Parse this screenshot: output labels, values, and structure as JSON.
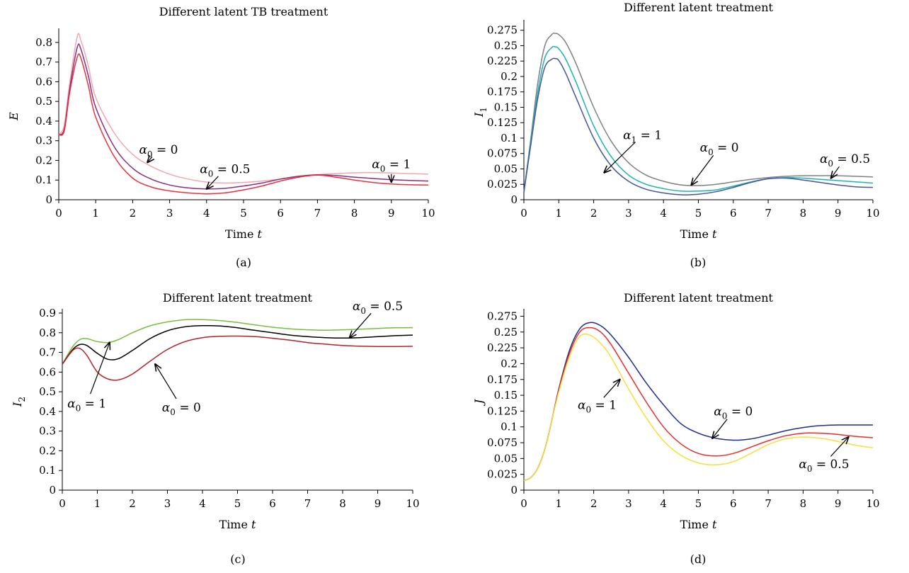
{
  "chart_data": [
    {
      "panel": "(a)",
      "type": "line",
      "title": "Different latent TB treatment",
      "xlabel_text": "Time",
      "xlabel_var": "t",
      "ylabel_var": "E",
      "ylabel_sub": "",
      "xlim": [
        0,
        10
      ],
      "ylim": [
        0,
        0.85
      ],
      "xticks": [
        0,
        1,
        2,
        3,
        4,
        5,
        6,
        7,
        8,
        9,
        10
      ],
      "yticks": [
        "0",
        "0.1",
        "0.2",
        "0.3",
        "0.4",
        "0.5",
        "0.6",
        "0.7",
        "0.8"
      ],
      "ytick_values": [
        0,
        0.1,
        0.2,
        0.3,
        0.4,
        0.5,
        0.6,
        0.7,
        0.8
      ],
      "series": [
        {
          "color": "#f4a7ae",
          "x": [
            0,
            0.15,
            0.3,
            0.5,
            0.6,
            0.8,
            1,
            1.5,
            2,
            2.5,
            3,
            3.5,
            4,
            4.5,
            5,
            5.5,
            6,
            6.5,
            7,
            7.5,
            8,
            8.5,
            9,
            9.5,
            10
          ],
          "y": [
            0.33,
            0.38,
            0.6,
            0.83,
            0.81,
            0.68,
            0.52,
            0.34,
            0.23,
            0.17,
            0.13,
            0.105,
            0.09,
            0.085,
            0.088,
            0.095,
            0.105,
            0.118,
            0.128,
            0.133,
            0.137,
            0.138,
            0.136,
            0.133,
            0.13
          ]
        },
        {
          "color": "#8b2d7d",
          "x": [
            0,
            0.15,
            0.3,
            0.5,
            0.6,
            0.8,
            1,
            1.5,
            2,
            2.5,
            3,
            3.5,
            4,
            4.5,
            5,
            5.5,
            6,
            6.5,
            7,
            7.5,
            8,
            8.5,
            9,
            9.5,
            10
          ],
          "y": [
            0.33,
            0.36,
            0.57,
            0.775,
            0.765,
            0.63,
            0.47,
            0.27,
            0.16,
            0.105,
            0.075,
            0.06,
            0.055,
            0.058,
            0.07,
            0.085,
            0.105,
            0.12,
            0.127,
            0.123,
            0.115,
            0.108,
            0.102,
            0.098,
            0.095
          ]
        },
        {
          "color": "#e8323c",
          "x": [
            0,
            0.15,
            0.3,
            0.5,
            0.6,
            0.8,
            1,
            1.5,
            2,
            2.5,
            3,
            3.5,
            4,
            4.5,
            5,
            5.5,
            6,
            6.5,
            7,
            7.5,
            8,
            8.5,
            9,
            9.5,
            10
          ],
          "y": [
            0.33,
            0.35,
            0.55,
            0.725,
            0.72,
            0.58,
            0.42,
            0.22,
            0.11,
            0.065,
            0.045,
            0.035,
            0.03,
            0.035,
            0.05,
            0.07,
            0.095,
            0.115,
            0.125,
            0.115,
            0.1,
            0.088,
            0.08,
            0.076,
            0.075
          ]
        }
      ],
      "annotations": [
        {
          "prefix": "α",
          "sub": "0",
          "rest": " = 0",
          "tx": 2.7,
          "ty": 0.235,
          "ax": 2.4,
          "ay": 0.19
        },
        {
          "prefix": "α",
          "sub": "0",
          "rest": " = 0.5",
          "tx": 4.5,
          "ty": 0.135,
          "ax": 4.0,
          "ay": 0.055
        },
        {
          "prefix": "α",
          "sub": "0",
          "rest": " = 1",
          "tx": 9.0,
          "ty": 0.16,
          "ax": 9.0,
          "ay": 0.09
        }
      ]
    },
    {
      "panel": "(b)",
      "type": "line",
      "title": "Different latent treatment",
      "xlabel_text": "Time",
      "xlabel_var": "t",
      "ylabel_var": "I",
      "ylabel_sub": "1",
      "xlim": [
        0,
        10
      ],
      "ylim": [
        0,
        0.285
      ],
      "xticks": [
        0,
        1,
        2,
        3,
        4,
        5,
        6,
        7,
        8,
        9,
        10
      ],
      "yticks": [
        "0",
        "0.025",
        "0.05",
        "0.075",
        "0.1",
        "0.125",
        "0.15",
        "0.175",
        "0.2",
        "0.225",
        "0.25",
        "0.275"
      ],
      "ytick_values": [
        0,
        0.025,
        0.05,
        0.075,
        0.1,
        0.125,
        0.15,
        0.175,
        0.2,
        0.225,
        0.25,
        0.275
      ],
      "series": [
        {
          "color": "#808080",
          "x": [
            0,
            0.2,
            0.4,
            0.6,
            0.8,
            0.9,
            1,
            1.2,
            1.5,
            2,
            2.5,
            3,
            3.5,
            4,
            4.5,
            5,
            5.5,
            6,
            6.5,
            7,
            7.5,
            8,
            8.5,
            9,
            9.5,
            10
          ],
          "y": [
            0.012,
            0.1,
            0.19,
            0.25,
            0.268,
            0.27,
            0.268,
            0.255,
            0.22,
            0.15,
            0.095,
            0.06,
            0.04,
            0.03,
            0.024,
            0.023,
            0.025,
            0.029,
            0.033,
            0.036,
            0.038,
            0.039,
            0.039,
            0.039,
            0.038,
            0.037
          ]
        },
        {
          "color": "#1ab5b0",
          "x": [
            0,
            0.2,
            0.4,
            0.6,
            0.8,
            0.9,
            1,
            1.2,
            1.5,
            2,
            2.5,
            3,
            3.5,
            4,
            4.5,
            5,
            5.5,
            6,
            6.5,
            7,
            7.5,
            8,
            8.5,
            9,
            9.5,
            10
          ],
          "y": [
            0.012,
            0.095,
            0.175,
            0.23,
            0.247,
            0.248,
            0.245,
            0.228,
            0.19,
            0.12,
            0.07,
            0.04,
            0.025,
            0.018,
            0.014,
            0.014,
            0.016,
            0.022,
            0.029,
            0.034,
            0.036,
            0.035,
            0.033,
            0.031,
            0.029,
            0.027
          ]
        },
        {
          "color": "#46549e",
          "x": [
            0,
            0.2,
            0.4,
            0.6,
            0.8,
            0.9,
            1,
            1.2,
            1.5,
            2,
            2.5,
            3,
            3.5,
            4,
            4.5,
            5,
            5.5,
            6,
            6.5,
            7,
            7.5,
            8,
            8.5,
            9,
            9.5,
            10
          ],
          "y": [
            0.012,
            0.09,
            0.165,
            0.215,
            0.228,
            0.229,
            0.226,
            0.205,
            0.165,
            0.1,
            0.055,
            0.03,
            0.017,
            0.011,
            0.008,
            0.009,
            0.013,
            0.02,
            0.028,
            0.034,
            0.035,
            0.032,
            0.028,
            0.024,
            0.021,
            0.02
          ]
        }
      ],
      "annotations": [
        {
          "prefix": "α",
          "sub": "1",
          "rest": " = 1",
          "tx": 3.4,
          "ty": 0.098,
          "ax": 2.3,
          "ay": 0.044
        },
        {
          "prefix": "α",
          "sub": "0",
          "rest": " = 0",
          "tx": 5.6,
          "ty": 0.078,
          "ax": 4.8,
          "ay": 0.024
        },
        {
          "prefix": "α",
          "sub": "0",
          "rest": " = 0.5",
          "tx": 9.2,
          "ty": 0.06,
          "ax": 8.8,
          "ay": 0.035
        }
      ]
    },
    {
      "panel": "(c)",
      "type": "line",
      "title": "Different latent treatment",
      "xlabel_text": "Time",
      "xlabel_var": "t",
      "ylabel_var": "I",
      "ylabel_sub": "2",
      "xlim": [
        0,
        10
      ],
      "ylim": [
        0,
        0.9
      ],
      "xticks": [
        0,
        1,
        2,
        3,
        4,
        5,
        6,
        7,
        8,
        9,
        10
      ],
      "yticks": [
        "0",
        "0.1",
        "0.2",
        "0.3",
        "0.4",
        "0.5",
        "0.6",
        "0.7",
        "0.8",
        "0.9"
      ],
      "ytick_values": [
        0,
        0.1,
        0.2,
        0.3,
        0.4,
        0.5,
        0.6,
        0.7,
        0.8,
        0.9
      ],
      "series": [
        {
          "color": "#79bd3f",
          "x": [
            0,
            0.3,
            0.5,
            0.7,
            1,
            1.3,
            1.6,
            2,
            2.5,
            3,
            3.5,
            4,
            4.5,
            5,
            5.5,
            6,
            6.5,
            7,
            7.5,
            8,
            8.5,
            9,
            9.5,
            10
          ],
          "y": [
            0.64,
            0.73,
            0.765,
            0.77,
            0.755,
            0.75,
            0.765,
            0.8,
            0.835,
            0.855,
            0.866,
            0.867,
            0.862,
            0.852,
            0.84,
            0.828,
            0.82,
            0.815,
            0.813,
            0.815,
            0.818,
            0.822,
            0.825,
            0.826
          ]
        },
        {
          "color": "#000000",
          "x": [
            0,
            0.3,
            0.5,
            0.7,
            1,
            1.3,
            1.6,
            2,
            2.5,
            3,
            3.5,
            4,
            4.5,
            5,
            5.5,
            6,
            6.5,
            7,
            7.5,
            8,
            8.5,
            9,
            9.5,
            10
          ],
          "y": [
            0.64,
            0.715,
            0.74,
            0.735,
            0.695,
            0.665,
            0.668,
            0.71,
            0.77,
            0.81,
            0.83,
            0.836,
            0.834,
            0.825,
            0.812,
            0.8,
            0.788,
            0.78,
            0.775,
            0.773,
            0.775,
            0.78,
            0.785,
            0.788
          ]
        },
        {
          "color": "#b52126",
          "x": [
            0,
            0.3,
            0.5,
            0.7,
            1,
            1.3,
            1.6,
            2,
            2.5,
            3,
            3.5,
            4,
            4.5,
            5,
            5.5,
            6,
            6.5,
            7,
            7.5,
            8,
            8.5,
            9,
            9.5,
            10
          ],
          "y": [
            0.64,
            0.71,
            0.72,
            0.685,
            0.6,
            0.565,
            0.56,
            0.59,
            0.655,
            0.715,
            0.755,
            0.775,
            0.782,
            0.783,
            0.78,
            0.772,
            0.762,
            0.75,
            0.742,
            0.735,
            0.732,
            0.73,
            0.73,
            0.731
          ]
        }
      ],
      "annotations": [
        {
          "prefix": "α",
          "sub": "0",
          "rest": " = 0.5",
          "tx": 9.0,
          "ty": 0.915,
          "ax": 8.2,
          "ay": 0.775
        },
        {
          "prefix": "α",
          "sub": "0",
          "rest": " = 1",
          "tx": 0.7,
          "ty": 0.42,
          "ax": 1.35,
          "ay": 0.75
        },
        {
          "prefix": "α",
          "sub": "0",
          "rest": " = 0",
          "tx": 3.4,
          "ty": 0.4,
          "ax": 2.65,
          "ay": 0.64
        }
      ]
    },
    {
      "panel": "(d)",
      "type": "line",
      "title": "Different latent treatment",
      "xlabel_text": "Time",
      "xlabel_var": "t",
      "ylabel_var": "J",
      "ylabel_sub": "",
      "xlim": [
        0,
        10
      ],
      "ylim": [
        0,
        0.28
      ],
      "xticks": [
        0,
        1,
        2,
        3,
        4,
        5,
        6,
        7,
        8,
        9,
        10
      ],
      "yticks": [
        "0",
        "0.025",
        "0.05",
        "0.075",
        "0.1",
        "0.125",
        "0.15",
        "0.175",
        "0.2",
        "0.225",
        "0.25",
        "0.275"
      ],
      "ytick_values": [
        0,
        0.025,
        0.05,
        0.075,
        0.1,
        0.125,
        0.15,
        0.175,
        0.2,
        0.225,
        0.25,
        0.275
      ],
      "series": [
        {
          "color": "#1f2c8f",
          "x": [
            0,
            0.2,
            0.4,
            0.6,
            0.8,
            1,
            1.3,
            1.6,
            1.9,
            2.2,
            2.5,
            3,
            3.5,
            4,
            4.5,
            5,
            5.5,
            6,
            6.5,
            7,
            7.5,
            8,
            8.5,
            9,
            9.5,
            10
          ],
          "y": [
            0.015,
            0.02,
            0.035,
            0.065,
            0.11,
            0.16,
            0.22,
            0.255,
            0.265,
            0.26,
            0.245,
            0.21,
            0.17,
            0.135,
            0.105,
            0.09,
            0.082,
            0.079,
            0.081,
            0.087,
            0.094,
            0.099,
            0.102,
            0.103,
            0.103,
            0.103
          ]
        },
        {
          "color": "#ec2a2a",
          "x": [
            0,
            0.2,
            0.4,
            0.6,
            0.8,
            1,
            1.3,
            1.6,
            1.9,
            2.2,
            2.5,
            3,
            3.5,
            4,
            4.5,
            5,
            5.5,
            6,
            6.5,
            7,
            7.5,
            8,
            8.5,
            9,
            9.5,
            10
          ],
          "y": [
            0.015,
            0.02,
            0.035,
            0.065,
            0.11,
            0.158,
            0.215,
            0.25,
            0.257,
            0.25,
            0.23,
            0.185,
            0.14,
            0.1,
            0.073,
            0.058,
            0.054,
            0.058,
            0.068,
            0.078,
            0.086,
            0.09,
            0.09,
            0.088,
            0.085,
            0.083
          ]
        },
        {
          "color": "#f3e03c",
          "x": [
            0,
            0.2,
            0.4,
            0.6,
            0.8,
            1,
            1.3,
            1.6,
            1.9,
            2.2,
            2.5,
            3,
            3.5,
            4,
            4.5,
            5,
            5.5,
            6,
            6.5,
            7,
            7.5,
            8,
            8.5,
            9,
            9.5,
            10
          ],
          "y": [
            0.015,
            0.02,
            0.035,
            0.065,
            0.11,
            0.155,
            0.21,
            0.243,
            0.245,
            0.232,
            0.21,
            0.16,
            0.115,
            0.078,
            0.055,
            0.043,
            0.04,
            0.045,
            0.058,
            0.072,
            0.081,
            0.084,
            0.082,
            0.077,
            0.071,
            0.067
          ]
        }
      ],
      "annotations": [
        {
          "prefix": "α",
          "sub": "0",
          "rest": " = 1",
          "tx": 2.1,
          "ty": 0.128,
          "ax": 2.75,
          "ay": 0.175
        },
        {
          "prefix": "α",
          "sub": "0",
          "rest": " = 0",
          "tx": 6.0,
          "ty": 0.118,
          "ax": 5.4,
          "ay": 0.082
        },
        {
          "prefix": "α",
          "sub": "0",
          "rest": " = 0.5",
          "tx": 8.6,
          "ty": 0.035,
          "ax": 9.3,
          "ay": 0.084
        }
      ]
    }
  ]
}
